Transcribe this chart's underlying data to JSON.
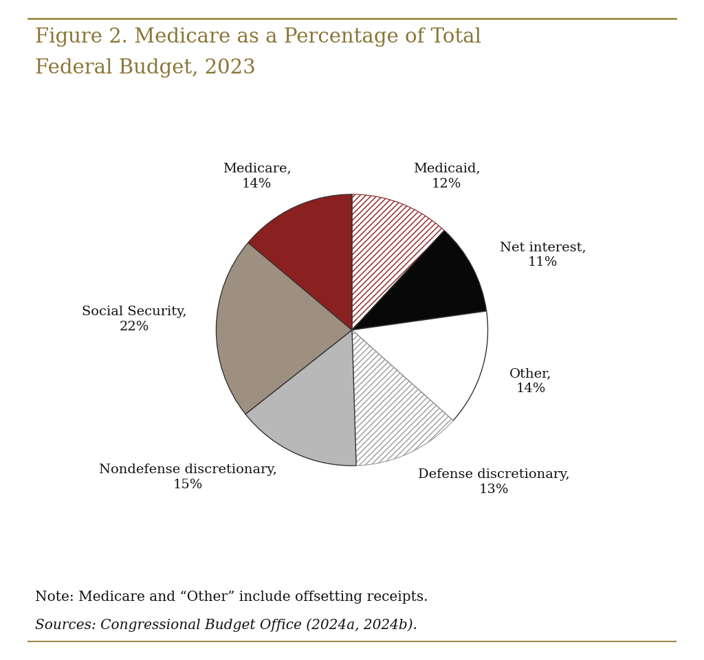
{
  "title_line1": "Figure 2. Medicare as a Percentage of Total",
  "title_line2": "Federal Budget, 2023",
  "title_color": "#8B7536",
  "note_line1": "Note: Medicare and “Other” include offsetting receipts.",
  "note_line2": "Sources: Congressional Budget Office (2024a, 2024b).",
  "slices": [
    {
      "label": "Medicaid,\n12%",
      "value": 12,
      "hatch": "////",
      "base_color": "#ffffff",
      "hatch_color": "#8B1A1A"
    },
    {
      "label": "Net interest,\n11%",
      "value": 11,
      "hatch": "",
      "base_color": "#080808",
      "hatch_color": null
    },
    {
      "label": "Other,\n14%",
      "value": 14,
      "hatch": "",
      "base_color": "#ffffff",
      "hatch_color": null
    },
    {
      "label": "Defense discretionary,\n13%",
      "value": 13,
      "hatch": "////",
      "base_color": "#ffffff",
      "hatch_color": "#999999"
    },
    {
      "label": "Nondefense discretionary,\n15%",
      "value": 15,
      "hatch": "",
      "base_color": "#b8b8b8",
      "hatch_color": null
    },
    {
      "label": "Social Security,\n22%",
      "value": 22,
      "hatch": "",
      "base_color": "#9e9080",
      "hatch_color": null
    },
    {
      "label": "Medicare,\n14%",
      "value": 14,
      "hatch": "",
      "base_color": "#8B2020",
      "hatch_color": null
    }
  ],
  "edge_color": "#333333",
  "background_color": "#ffffff",
  "border_color": "#9e8a4a",
  "label_fontsize": 14,
  "figsize": [
    10.24,
    9.61
  ],
  "dpi": 100
}
